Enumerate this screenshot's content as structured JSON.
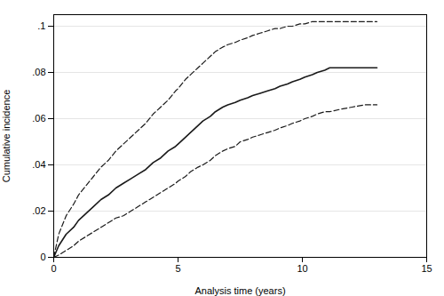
{
  "chart_data": {
    "type": "line",
    "xlabel": "Analysis time (years)",
    "ylabel": "Cumulative incidence",
    "xlim": [
      0,
      15
    ],
    "ylim": [
      0,
      0.105
    ],
    "xticks": [
      0,
      5,
      10,
      15
    ],
    "yticks": [
      0,
      {
        "value": 0.02,
        "label": ".02"
      },
      {
        "value": 0.04,
        "label": ".04"
      },
      {
        "value": 0.06,
        "label": ".06"
      },
      {
        "value": 0.08,
        "label": ".08"
      },
      {
        "value": 0.1,
        "label": ".1"
      }
    ],
    "grid": "y",
    "x": [
      0,
      0.2,
      0.5,
      0.8,
      1.0,
      1.3,
      1.6,
      1.9,
      2.2,
      2.5,
      2.8,
      3.1,
      3.4,
      3.7,
      4.0,
      4.3,
      4.6,
      4.9,
      5.0,
      5.3,
      5.5,
      5.8,
      6.0,
      6.3,
      6.5,
      6.8,
      7.0,
      7.3,
      7.5,
      7.8,
      8.0,
      8.3,
      8.6,
      8.9,
      9.1,
      9.4,
      9.6,
      9.9,
      10.1,
      10.4,
      10.6,
      10.9,
      11.1,
      11.5,
      12.0,
      12.5,
      13.0
    ],
    "series": [
      {
        "color": "#1a1a1a",
        "line_style": "solid",
        "values": [
          0,
          0.005,
          0.01,
          0.013,
          0.016,
          0.019,
          0.022,
          0.025,
          0.027,
          0.03,
          0.032,
          0.034,
          0.036,
          0.038,
          0.041,
          0.043,
          0.046,
          0.048,
          0.049,
          0.052,
          0.054,
          0.057,
          0.059,
          0.061,
          0.063,
          0.065,
          0.066,
          0.067,
          0.068,
          0.069,
          0.07,
          0.071,
          0.072,
          0.073,
          0.074,
          0.075,
          0.076,
          0.077,
          0.078,
          0.079,
          0.08,
          0.081,
          0.082,
          0.082,
          0.082,
          0.082,
          0.082
        ]
      },
      {
        "color": "#1a1a1a",
        "line_style": "dashed",
        "values": [
          0,
          0.01,
          0.018,
          0.023,
          0.027,
          0.031,
          0.035,
          0.039,
          0.042,
          0.046,
          0.049,
          0.052,
          0.055,
          0.058,
          0.062,
          0.065,
          0.068,
          0.072,
          0.073,
          0.077,
          0.079,
          0.082,
          0.084,
          0.087,
          0.089,
          0.091,
          0.092,
          0.093,
          0.094,
          0.095,
          0.096,
          0.097,
          0.098,
          0.099,
          0.099,
          0.1,
          0.1,
          0.101,
          0.101,
          0.102,
          0.102,
          0.102,
          0.102,
          0.102,
          0.102,
          0.102,
          0.102
        ]
      },
      {
        "color": "#1a1a1a",
        "line_style": "dashed",
        "values": [
          0,
          0.001,
          0.003,
          0.005,
          0.007,
          0.009,
          0.011,
          0.013,
          0.015,
          0.017,
          0.018,
          0.02,
          0.022,
          0.024,
          0.026,
          0.028,
          0.03,
          0.032,
          0.033,
          0.035,
          0.037,
          0.039,
          0.04,
          0.042,
          0.044,
          0.046,
          0.047,
          0.048,
          0.05,
          0.051,
          0.052,
          0.053,
          0.054,
          0.055,
          0.056,
          0.057,
          0.058,
          0.059,
          0.06,
          0.061,
          0.062,
          0.063,
          0.063,
          0.064,
          0.065,
          0.066,
          0.066
        ]
      }
    ]
  }
}
